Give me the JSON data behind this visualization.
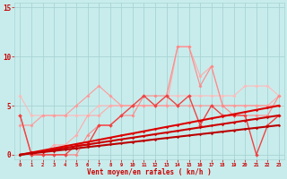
{
  "x": [
    0,
    1,
    2,
    3,
    4,
    5,
    6,
    7,
    8,
    9,
    10,
    11,
    12,
    13,
    14,
    15,
    16,
    17,
    18,
    19,
    20,
    21,
    22,
    23
  ],
  "series": [
    {
      "y": [
        6,
        4,
        4,
        4,
        4,
        4,
        4,
        5,
        5,
        5,
        5,
        5,
        5,
        6,
        6,
        6,
        6,
        6,
        6,
        6,
        7,
        7,
        7,
        6
      ],
      "color": "#ffbbbb",
      "lw": 0.8,
      "marker": "D",
      "ms": 1.8
    },
    {
      "y": [
        4,
        0,
        0,
        1,
        1,
        2,
        4,
        4,
        5,
        5,
        5,
        5,
        5,
        5,
        11,
        11,
        8,
        9,
        5,
        5,
        5,
        5,
        5,
        6
      ],
      "color": "#ffaaaa",
      "lw": 0.8,
      "marker": "D",
      "ms": 1.8
    },
    {
      "y": [
        3,
        3,
        4,
        4,
        4,
        5,
        6,
        7,
        6,
        5,
        5,
        5,
        5,
        5,
        5,
        5,
        5,
        5,
        5,
        5,
        5,
        5,
        5,
        5
      ],
      "color": "#ff9999",
      "lw": 0.8,
      "marker": "D",
      "ms": 1.8
    },
    {
      "y": [
        4,
        0,
        0,
        0,
        0,
        0,
        2,
        3,
        3,
        4,
        4,
        6,
        6,
        6,
        11,
        11,
        7,
        9,
        5,
        4,
        4,
        4,
        4,
        6
      ],
      "color": "#ff8888",
      "lw": 0.8,
      "marker": "D",
      "ms": 1.8
    },
    {
      "y": [
        4,
        0,
        0,
        0,
        0,
        1,
        1,
        3,
        3,
        4,
        5,
        6,
        5,
        6,
        5,
        6,
        3,
        5,
        4,
        4,
        4,
        0,
        3,
        4
      ],
      "color": "#ee4444",
      "lw": 1.0,
      "marker": "D",
      "ms": 2.0
    },
    {
      "y": [
        0.0,
        0.17,
        0.35,
        0.52,
        0.7,
        0.87,
        1.04,
        1.22,
        1.39,
        1.57,
        1.74,
        1.91,
        2.09,
        2.26,
        2.43,
        2.61,
        2.78,
        2.96,
        3.13,
        3.3,
        3.48,
        3.65,
        3.83,
        4.0
      ],
      "color": "#cc0000",
      "lw": 1.5,
      "marker": "D",
      "ms": 1.5
    },
    {
      "y": [
        0.0,
        0.22,
        0.43,
        0.65,
        0.87,
        1.09,
        1.3,
        1.52,
        1.74,
        1.96,
        2.17,
        2.39,
        2.61,
        2.83,
        3.04,
        3.26,
        3.48,
        3.7,
        3.91,
        4.13,
        4.35,
        4.57,
        4.78,
        5.0
      ],
      "color": "#dd0000",
      "lw": 1.5,
      "marker": "D",
      "ms": 1.5
    },
    {
      "y": [
        0.0,
        0.13,
        0.26,
        0.39,
        0.52,
        0.65,
        0.78,
        0.91,
        1.04,
        1.17,
        1.3,
        1.43,
        1.57,
        1.7,
        1.83,
        1.96,
        2.09,
        2.22,
        2.35,
        2.48,
        2.61,
        2.74,
        2.87,
        3.0
      ],
      "color": "#bb0000",
      "lw": 1.5,
      "marker": "D",
      "ms": 1.5
    }
  ],
  "xlim": [
    -0.5,
    23.5
  ],
  "ylim": [
    -0.5,
    15.5
  ],
  "yticks": [
    0,
    5,
    10,
    15
  ],
  "xtick_labels": [
    "0",
    "1",
    "2",
    "3",
    "4",
    "5",
    "6",
    "7",
    "8",
    "9",
    "10",
    "11",
    "12",
    "13",
    "14",
    "15",
    "16",
    "17",
    "18",
    "19",
    "20",
    "21",
    "22",
    "23"
  ],
  "xtick_positions": [
    0,
    1,
    2,
    3,
    4,
    5,
    6,
    7,
    8,
    9,
    10,
    11,
    12,
    13,
    14,
    15,
    16,
    17,
    18,
    19,
    20,
    21,
    22,
    23
  ],
  "xlabel": "Vent moyen/en rafales ( kn/h )",
  "bg_color": "#c8ecec",
  "grid_color": "#a8d4d4",
  "tick_color": "#cc0000",
  "label_color": "#cc0000"
}
